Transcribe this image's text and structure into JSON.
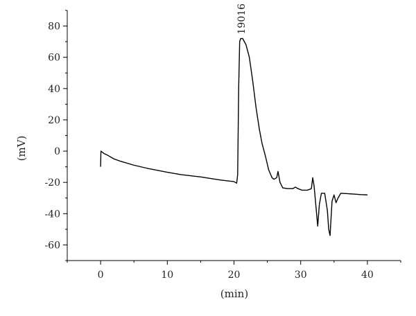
{
  "chart_data": {
    "type": "line",
    "title": "",
    "xlabel": "(min)",
    "ylabel": "(mV)",
    "xlim": [
      -5,
      45
    ],
    "ylim": [
      -70,
      90
    ],
    "xticks": [
      0,
      10,
      20,
      30,
      40
    ],
    "yticks": [
      -60,
      -40,
      -20,
      0,
      20,
      40,
      60,
      80
    ],
    "grid": false,
    "legend": "none",
    "line_color": "#000000",
    "annotations": [
      {
        "text": "19016",
        "x": 21.1,
        "y": 72,
        "rotation": -90
      }
    ],
    "series": [
      {
        "x": [
          0.0,
          0.05,
          0.2,
          0.5,
          1.0,
          2.0,
          3.0,
          5.0,
          7.0,
          10.0,
          12.0,
          15.0,
          18.0,
          20.0,
          20.4,
          20.55,
          20.7,
          20.85,
          21.0,
          21.3,
          21.8,
          22.3,
          22.8,
          23.3,
          23.8,
          24.2,
          24.7,
          25.2,
          25.7,
          26.0,
          26.4,
          26.6,
          26.9,
          27.3,
          28.0,
          28.8,
          29.2,
          29.6,
          30.2,
          31.0,
          31.6,
          31.8,
          32.0,
          32.3,
          32.55,
          32.8,
          33.1,
          33.6,
          34.0,
          34.2,
          34.4,
          34.7,
          35.0,
          35.3,
          35.6,
          36.0,
          37.0,
          38.0,
          39.0,
          40.0
        ],
        "y": [
          -10,
          0,
          -0.5,
          -1.5,
          -2.5,
          -5,
          -6.5,
          -9,
          -11,
          -13.5,
          -15,
          -16.5,
          -18.5,
          -19.5,
          -20.5,
          -15,
          40,
          70,
          72,
          72,
          68,
          60,
          45,
          28,
          14,
          5,
          -3,
          -12,
          -17,
          -18,
          -17,
          -13,
          -20,
          -23.5,
          -24,
          -24,
          -23,
          -24,
          -25,
          -25,
          -24,
          -17,
          -22,
          -36,
          -48,
          -34,
          -27,
          -27,
          -38,
          -50,
          -54,
          -32,
          -28,
          -33,
          -30,
          -27,
          -27.2,
          -27.5,
          -27.8,
          -28
        ]
      }
    ]
  }
}
